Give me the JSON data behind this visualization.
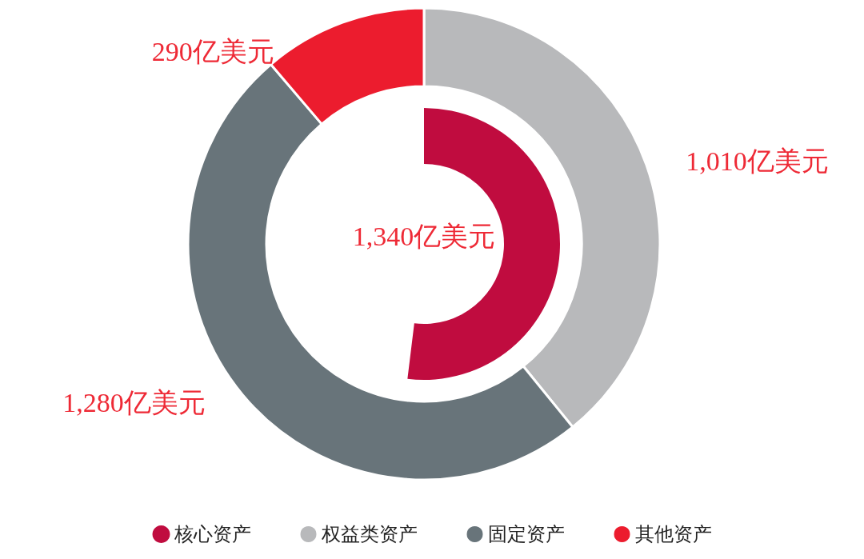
{
  "chart_data": {
    "type": "donut",
    "categories": [
      "核心资产",
      "权益类资产",
      "固定资产",
      "其他资产"
    ],
    "colors": [
      "#c00c3f",
      "#b8b9bb",
      "#68747a",
      "#ec1c2e"
    ],
    "legend": "bottom",
    "series": [
      {
        "values": [
          1340,
          null,
          null,
          null
        ],
        "value_labels": [
          "1,340亿美元",
          null,
          null,
          null
        ]
      },
      {
        "values": [
          null,
          1010,
          1280,
          290
        ],
        "value_labels": [
          null,
          "1,010亿美元",
          "1,280亿美元",
          "290亿美元"
        ]
      }
    ]
  }
}
